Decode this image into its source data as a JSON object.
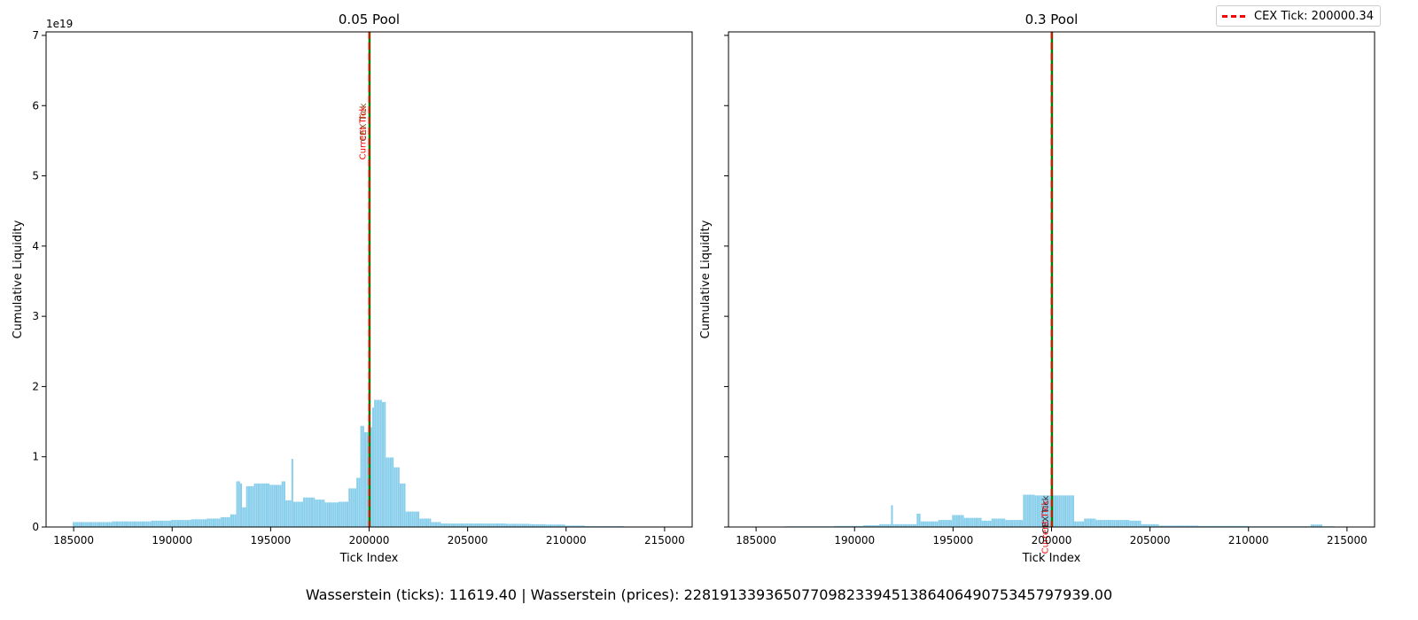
{
  "suptitle": "Wasserstein (ticks): 11619.40 | Wasserstein (prices): 228191339365077098233945138640649075345797939.00",
  "legend": {
    "label": "CEX Tick: 200000.34",
    "color": "#ff0000"
  },
  "colors": {
    "bar": "#87ceeb",
    "cex": "#ff0000",
    "current": "#008000"
  },
  "chart_data": [
    {
      "type": "bar",
      "title": "0.05 Pool",
      "xlabel": "Tick Index",
      "ylabel": "Cumulative Liquidity",
      "y_offset_label": "1e19",
      "xlim": [
        183600,
        216400
      ],
      "ylim": [
        0,
        7.05
      ],
      "x_ticks": [
        185000,
        190000,
        195000,
        200000,
        205000,
        210000,
        215000
      ],
      "x_tick_labels": [
        "185000",
        "190000",
        "195000",
        "200000",
        "205000",
        "210000",
        "215000"
      ],
      "y_ticks": [
        0,
        1,
        2,
        3,
        4,
        5,
        6,
        7
      ],
      "y_tick_labels": [
        "0",
        "1",
        "2",
        "3",
        "4",
        "5",
        "6",
        "7"
      ],
      "cex_tick": 200000.34,
      "current_tick": 200020,
      "vline_labels": [
        "CEX Tick",
        "Current Tick"
      ],
      "profile": [
        [
          185000,
          0.07
        ],
        [
          186000,
          0.07
        ],
        [
          187000,
          0.08
        ],
        [
          188000,
          0.08
        ],
        [
          189000,
          0.09
        ],
        [
          190000,
          0.1
        ],
        [
          191000,
          0.11
        ],
        [
          191800,
          0.12
        ],
        [
          192500,
          0.14
        ],
        [
          193000,
          0.18
        ],
        [
          193300,
          0.65
        ],
        [
          193500,
          0.62
        ],
        [
          193600,
          0.28
        ],
        [
          193800,
          0.58
        ],
        [
          194200,
          0.62
        ],
        [
          195000,
          0.6
        ],
        [
          195600,
          0.65
        ],
        [
          195800,
          0.38
        ],
        [
          196100,
          0.97
        ],
        [
          196200,
          0.36
        ],
        [
          196700,
          0.42
        ],
        [
          197300,
          0.39
        ],
        [
          197800,
          0.35
        ],
        [
          198500,
          0.36
        ],
        [
          199000,
          0.55
        ],
        [
          199400,
          0.7
        ],
        [
          199600,
          1.44
        ],
        [
          199800,
          1.35
        ],
        [
          200000,
          1.42
        ],
        [
          200150,
          1.7
        ],
        [
          200300,
          1.81
        ],
        [
          200700,
          1.78
        ],
        [
          200900,
          0.99
        ],
        [
          201300,
          0.85
        ],
        [
          201600,
          0.62
        ],
        [
          201900,
          0.22
        ],
        [
          202600,
          0.12
        ],
        [
          203200,
          0.07
        ],
        [
          203700,
          0.05
        ],
        [
          207000,
          0.045
        ],
        [
          208200,
          0.04
        ],
        [
          209000,
          0.035
        ],
        [
          210000,
          0.02
        ],
        [
          211000,
          0.012
        ],
        [
          213000,
          0.007
        ]
      ],
      "x_end": 215000
    },
    {
      "type": "bar",
      "title": "0.3 Pool",
      "xlabel": "Tick Index",
      "ylabel": "Cumulative Liquidity",
      "xlim": [
        183600,
        216400
      ],
      "ylim": [
        0,
        7.05
      ],
      "x_ticks": [
        185000,
        190000,
        195000,
        200000,
        205000,
        210000,
        215000
      ],
      "x_tick_labels": [
        "185000",
        "190000",
        "195000",
        "200000",
        "205000",
        "210000",
        "215000"
      ],
      "y_ticks": [
        0,
        1,
        2,
        3,
        4,
        5,
        6,
        7
      ],
      "cex_tick": 200000.34,
      "current_tick": 200020,
      "vline_labels": [
        "CEX Tick",
        "Current Tick"
      ],
      "profile": [
        [
          186500,
          0.01
        ],
        [
          189000,
          0.015
        ],
        [
          190500,
          0.025
        ],
        [
          191300,
          0.04
        ],
        [
          191900,
          0.31
        ],
        [
          192000,
          0.04
        ],
        [
          193200,
          0.19
        ],
        [
          193400,
          0.08
        ],
        [
          194300,
          0.1
        ],
        [
          195000,
          0.17
        ],
        [
          195600,
          0.13
        ],
        [
          196500,
          0.09
        ],
        [
          197000,
          0.12
        ],
        [
          197700,
          0.1
        ],
        [
          198600,
          0.46
        ],
        [
          199200,
          0.45
        ],
        [
          200800,
          0.45
        ],
        [
          201200,
          0.08
        ],
        [
          201700,
          0.12
        ],
        [
          202300,
          0.1
        ],
        [
          204000,
          0.09
        ],
        [
          204600,
          0.04
        ],
        [
          205500,
          0.02
        ],
        [
          207500,
          0.015
        ],
        [
          210000,
          0.01
        ],
        [
          213200,
          0.035
        ],
        [
          213800,
          0.01
        ]
      ],
      "x_end": 214300
    }
  ]
}
